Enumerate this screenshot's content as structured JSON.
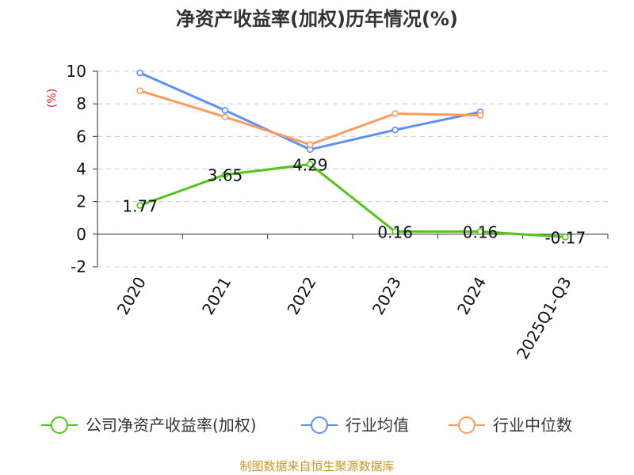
{
  "chart_data": {
    "type": "line",
    "title": "净资产收益率(加权)历年情况(%)",
    "ylabel": "(%)",
    "xlabel": "",
    "categories": [
      "2020",
      "2021",
      "2022",
      "2023",
      "2024",
      "2025Q1-Q3"
    ],
    "yticks": [
      "10",
      "8",
      "6",
      "4",
      "2",
      "0",
      "-2"
    ],
    "ylim": [
      -2,
      10
    ],
    "grid": true,
    "legend_position": "bottom",
    "series": [
      {
        "name": "公司净资产收益率(加权)",
        "color": "#52c41a",
        "values": [
          1.77,
          3.65,
          4.29,
          0.16,
          0.16,
          -0.17
        ],
        "labels": [
          "1.77",
          "3.65",
          "4.29",
          "0.16",
          "0.16",
          "-0.17"
        ]
      },
      {
        "name": "行业均值",
        "color": "#5b8ff9",
        "values": [
          9.9,
          7.6,
          5.2,
          6.4,
          7.5,
          null
        ]
      },
      {
        "name": "行业中位数",
        "color": "#ff9a5c",
        "values": [
          8.8,
          7.2,
          5.5,
          7.4,
          7.3,
          null
        ]
      }
    ],
    "source": "制图数据来自恒生聚源数据库"
  }
}
